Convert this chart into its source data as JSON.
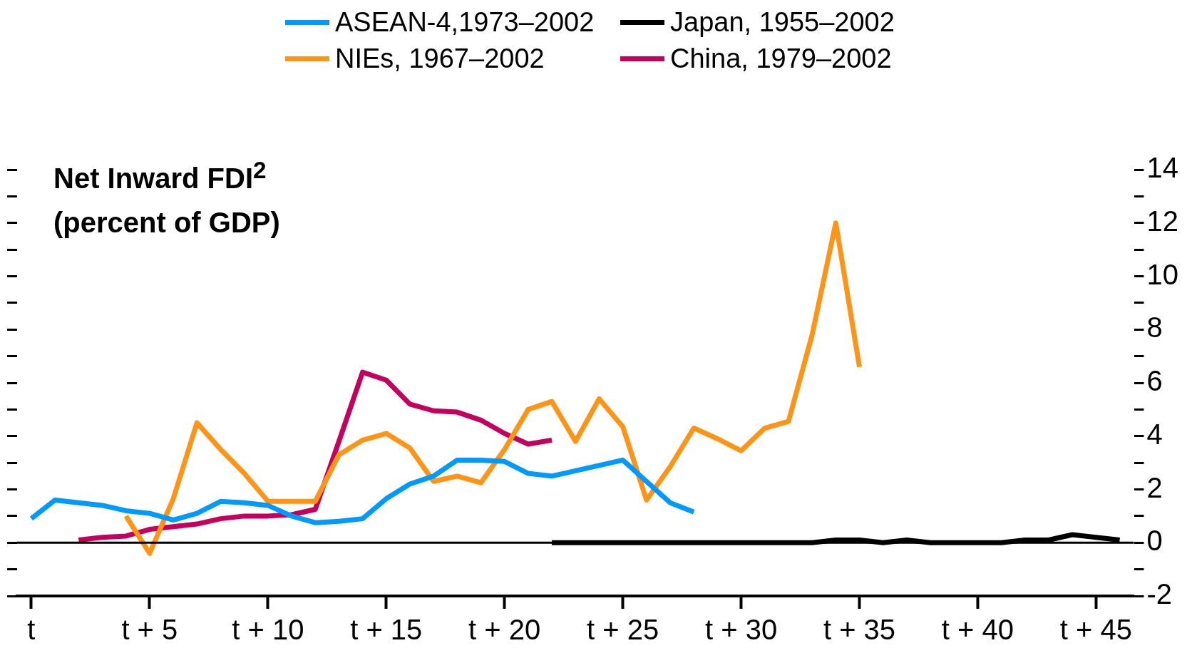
{
  "chart_data": {
    "type": "line",
    "ylabel": "Net Inward FDI$^{2}$\n(percent of GDP)",
    "legend": "top",
    "marker": "none",
    "line_style": "solid",
    "grid": false,
    "xlim": [
      -0.6,
      46.6
    ],
    "xticks": [
      {
        "value": 0,
        "label": "t"
      },
      {
        "value": 5,
        "label": "t + 5"
      },
      {
        "value": 10,
        "label": "t + 10"
      },
      {
        "value": 15,
        "label": "t + 15"
      },
      {
        "value": 20,
        "label": "t + 20"
      },
      {
        "value": 25,
        "label": "t + 25"
      },
      {
        "value": 30,
        "label": "t + 30"
      },
      {
        "value": 35,
        "label": "t + 35"
      },
      {
        "value": 40,
        "label": "t + 40"
      },
      {
        "value": 45,
        "label": "t + 45"
      }
    ],
    "ylim": [
      -2,
      14
    ],
    "yticks": [
      -2,
      {
        "value": -1,
        "label": null
      },
      0,
      {
        "value": 1,
        "label": null
      },
      2,
      {
        "value": 3,
        "label": null
      },
      4,
      {
        "value": 5,
        "label": null
      },
      6,
      {
        "value": 7,
        "label": null
      },
      8,
      {
        "value": 9,
        "label": null
      },
      10,
      {
        "value": 11,
        "label": null
      },
      12,
      {
        "value": 13,
        "label": null
      },
      14
    ],
    "ref_lines": [
      {
        "axis": "y",
        "value": 0,
        "color": "#000000"
      }
    ],
    "series": [
      {
        "name": "ASEAN-4,1973–2002",
        "color": "#0099ff",
        "x": [
          0,
          1,
          2,
          3,
          4,
          5,
          6,
          7,
          8,
          9,
          10,
          11,
          12,
          13,
          14,
          15,
          16,
          17,
          18,
          19,
          20,
          21,
          22,
          23,
          24,
          25,
          26,
          27,
          28
        ],
        "values": [
          0.9,
          1.6,
          1.5,
          1.4,
          1.2,
          1.1,
          0.85,
          1.1,
          1.55,
          1.5,
          1.4,
          1.0,
          0.75,
          0.8,
          0.9,
          1.65,
          2.2,
          2.5,
          3.1,
          3.1,
          3.05,
          2.6,
          2.5,
          2.7,
          2.9,
          3.1,
          2.3,
          1.5,
          1.15
        ]
      },
      {
        "name": "Japan, 1955–2002",
        "color": "#000000",
        "x": [
          22,
          23,
          24,
          25,
          26,
          27,
          28,
          29,
          30,
          31,
          32,
          33,
          34,
          35,
          36,
          37,
          38,
          39,
          40,
          41,
          42,
          43,
          44,
          45,
          46
        ],
        "values": [
          0,
          0,
          0,
          0,
          0,
          0,
          0,
          0,
          0,
          0,
          0,
          0,
          0.1,
          0.1,
          0,
          0.1,
          0,
          0,
          0,
          0,
          0.1,
          0.1,
          0.3,
          0.2,
          0.1
        ]
      },
      {
        "name": "NIEs, 1967–2002",
        "color": "#ff9417",
        "x": [
          4,
          5,
          6,
          7,
          8,
          9,
          10,
          11,
          12,
          13,
          14,
          15,
          16,
          17,
          18,
          19,
          20,
          21,
          22,
          23,
          24,
          25,
          26,
          27,
          28,
          29,
          30,
          31,
          32,
          33,
          34,
          35
        ],
        "values": [
          1.0,
          -0.4,
          1.65,
          4.5,
          3.5,
          2.6,
          1.55,
          1.55,
          1.55,
          3.3,
          3.85,
          4.1,
          3.55,
          2.3,
          2.5,
          2.25,
          3.5,
          5.0,
          5.3,
          3.8,
          5.4,
          4.35,
          1.6,
          2.85,
          4.3,
          3.9,
          3.45,
          4.3,
          4.55,
          7.8,
          12.0,
          6.6
        ]
      },
      {
        "name": "China, 1979–2002",
        "color": "#c4005c",
        "x": [
          2,
          3,
          4,
          5,
          6,
          7,
          8,
          9,
          10,
          11,
          12,
          13,
          14,
          15,
          16,
          17,
          18,
          19,
          20,
          21,
          22
        ],
        "values": [
          0.1,
          0.2,
          0.25,
          0.5,
          0.6,
          0.7,
          0.9,
          1.0,
          1.0,
          1.05,
          1.25,
          3.8,
          6.4,
          6.1,
          5.2,
          4.95,
          4.9,
          4.6,
          4.1,
          3.7,
          3.85
        ]
      }
    ]
  }
}
